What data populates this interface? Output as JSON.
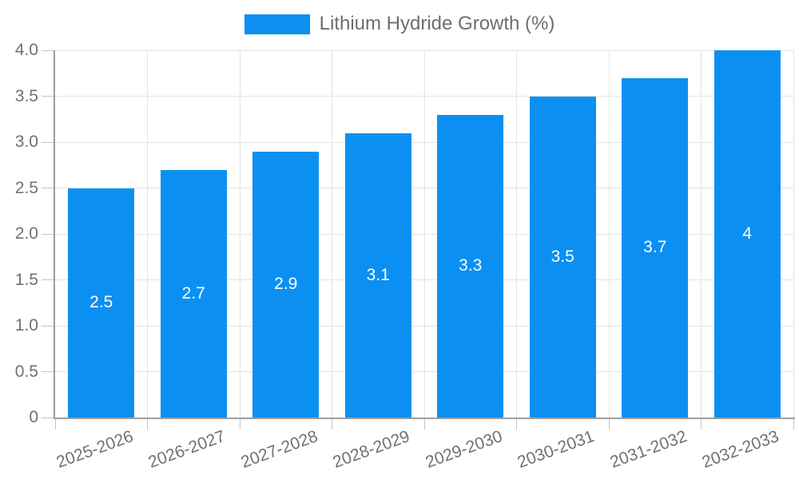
{
  "colors": {
    "bar": "#0b90f2",
    "grid": "#e4e4e4",
    "axis_line": "#9e9e9e",
    "tick": "#c4c4c4",
    "axis_text": "#717171",
    "bar_label_text": "#ffffff",
    "legend_text": "#6e6e6e",
    "background": "#ffffff"
  },
  "chart_data": {
    "type": "bar",
    "title": "Lithium Hydride Growth (%)",
    "legend": {
      "position": "top",
      "label": "Lithium Hydride Growth (%)"
    },
    "categories": [
      "2025-2026",
      "2026-2027",
      "2027-2028",
      "2028-2029",
      "2029-2030",
      "2030-2031",
      "2031-2032",
      "2032-2033"
    ],
    "values": [
      2.5,
      2.7,
      2.9,
      3.1,
      3.3,
      3.5,
      3.7,
      4
    ],
    "value_labels": [
      "2.5",
      "2.7",
      "2.9",
      "3.1",
      "3.3",
      "3.5",
      "3.7",
      "4"
    ],
    "xlabel": "",
    "ylabel": "",
    "ylim": [
      0,
      4
    ],
    "yticks": [
      {
        "value": 0,
        "label": "0"
      },
      {
        "value": 0.5,
        "label": "0.5"
      },
      {
        "value": 1,
        "label": "1.0"
      },
      {
        "value": 1.5,
        "label": "1.5"
      },
      {
        "value": 2,
        "label": "2.0"
      },
      {
        "value": 2.5,
        "label": "2.5"
      },
      {
        "value": 3,
        "label": "3.0"
      },
      {
        "value": 3.5,
        "label": "3.5"
      },
      {
        "value": 4,
        "label": "4.0"
      }
    ],
    "grid": true,
    "bar_label_position": "inside-middle",
    "x_label_rotation_deg": -20,
    "legend_position": "top"
  }
}
